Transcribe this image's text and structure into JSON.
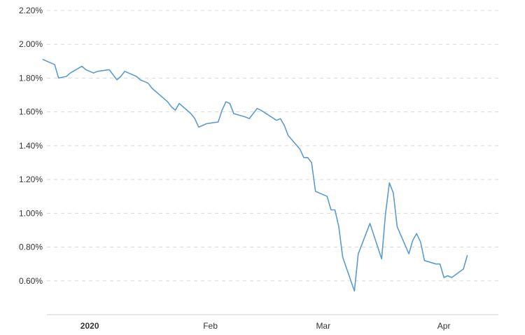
{
  "chart_data": {
    "type": "line",
    "title": "",
    "xlabel": "",
    "ylabel": "",
    "ylim": [
      0.4,
      2.2
    ],
    "y_ticks": [
      0.6,
      0.8,
      1.0,
      1.2,
      1.4,
      1.6,
      1.8,
      2.0,
      2.2
    ],
    "y_tick_labels": [
      "0.60%",
      "0.80%",
      "1.00%",
      "1.20%",
      "1.40%",
      "1.60%",
      "1.80%",
      "2.00%",
      "2.20%"
    ],
    "xlim": [
      "2019-12-21",
      "2020-04-15"
    ],
    "x_ticks": [
      {
        "date": "2020-01-01",
        "label": "2020",
        "bold": true
      },
      {
        "date": "2020-02-01",
        "label": "Feb",
        "bold": false
      },
      {
        "date": "2020-03-01",
        "label": "Mar",
        "bold": false
      },
      {
        "date": "2020-04-01",
        "label": "Apr",
        "bold": false
      }
    ],
    "grid": true,
    "legend": "none",
    "line_color": "#5b9bd0",
    "series": [
      {
        "x": [
          "2019-12-20",
          "2019-12-23",
          "2019-12-24",
          "2019-12-26",
          "2019-12-27",
          "2019-12-30",
          "2019-12-31",
          "2020-01-02",
          "2020-01-03",
          "2020-01-06",
          "2020-01-07",
          "2020-01-08",
          "2020-01-09",
          "2020-01-10",
          "2020-01-13",
          "2020-01-14",
          "2020-01-15",
          "2020-01-16",
          "2020-01-17",
          "2020-01-21",
          "2020-01-22",
          "2020-01-23",
          "2020-01-24",
          "2020-01-27",
          "2020-01-28",
          "2020-01-29",
          "2020-01-30",
          "2020-01-31",
          "2020-02-03",
          "2020-02-04",
          "2020-02-05",
          "2020-02-06",
          "2020-02-07",
          "2020-02-10",
          "2020-02-11",
          "2020-02-12",
          "2020-02-13",
          "2020-02-14",
          "2020-02-18",
          "2020-02-19",
          "2020-02-20",
          "2020-02-21",
          "2020-02-24",
          "2020-02-25",
          "2020-02-26",
          "2020-02-27",
          "2020-02-28",
          "2020-03-02",
          "2020-03-03",
          "2020-03-04",
          "2020-03-05",
          "2020-03-06",
          "2020-03-09",
          "2020-03-10",
          "2020-03-11",
          "2020-03-12",
          "2020-03-13",
          "2020-03-16",
          "2020-03-17",
          "2020-03-18",
          "2020-03-19",
          "2020-03-20",
          "2020-03-23",
          "2020-03-24",
          "2020-03-25",
          "2020-03-26",
          "2020-03-27",
          "2020-03-30",
          "2020-03-31",
          "2020-04-01",
          "2020-04-02",
          "2020-04-03",
          "2020-04-06",
          "2020-04-07"
        ],
        "values": [
          1.91,
          1.88,
          1.8,
          1.81,
          1.83,
          1.87,
          1.85,
          1.83,
          1.84,
          1.85,
          1.82,
          1.79,
          1.81,
          1.84,
          1.81,
          1.79,
          1.78,
          1.77,
          1.74,
          1.66,
          1.63,
          1.61,
          1.65,
          1.59,
          1.56,
          1.51,
          1.52,
          1.53,
          1.54,
          1.61,
          1.66,
          1.65,
          1.59,
          1.57,
          1.56,
          1.59,
          1.62,
          1.61,
          1.55,
          1.56,
          1.52,
          1.46,
          1.38,
          1.33,
          1.33,
          1.3,
          1.13,
          1.1,
          1.02,
          1.02,
          0.92,
          0.74,
          0.54,
          0.76,
          0.82,
          0.88,
          0.94,
          0.73,
          1.0,
          1.18,
          1.12,
          0.92,
          0.76,
          0.84,
          0.88,
          0.83,
          0.72,
          0.7,
          0.7,
          0.62,
          0.63,
          0.62,
          0.67,
          0.75
        ]
      }
    ]
  }
}
